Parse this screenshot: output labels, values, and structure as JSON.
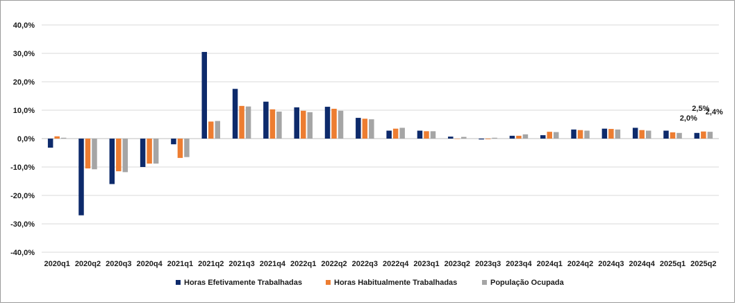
{
  "chart_data": {
    "type": "bar",
    "title": "",
    "xlabel": "",
    "ylabel": "",
    "ylim": [
      -40,
      40
    ],
    "grid": true,
    "legend_position": "bottom",
    "y_ticks": [
      "40,0%",
      "30,0%",
      "20,0%",
      "10,0%",
      "0,0%",
      "-10,0%",
      "-20,0%",
      "-30,0%",
      "-40,0%"
    ],
    "y_tick_values": [
      40,
      30,
      20,
      10,
      0,
      -10,
      -20,
      -30,
      -40
    ],
    "categories": [
      "2020q1",
      "2020q2",
      "2020q3",
      "2020q4",
      "2021q1",
      "2021q2",
      "2021q3",
      "2021q4",
      "2022q1",
      "2022q2",
      "2022q3",
      "2022q4",
      "2023q1",
      "2023q2",
      "2023q3",
      "2023q4",
      "2024q1",
      "2024q2",
      "2024q3",
      "2024q4",
      "2025q1",
      "2025q2"
    ],
    "series": [
      {
        "name": "Horas Efetivamente Trabalhadas",
        "color": "#0d2a6b",
        "values": [
          -3.2,
          -27.0,
          -16.0,
          -10.0,
          -2.0,
          30.5,
          17.5,
          13.0,
          11.0,
          11.2,
          7.3,
          2.8,
          2.8,
          0.7,
          -0.3,
          1.0,
          1.2,
          3.2,
          3.5,
          3.8,
          2.8,
          2.0
        ]
      },
      {
        "name": "Horas Habitualmente Trabalhadas",
        "color": "#ed7d31",
        "values": [
          0.8,
          -10.5,
          -11.5,
          -8.8,
          -6.8,
          6.0,
          11.5,
          10.3,
          9.8,
          10.5,
          7.0,
          3.5,
          2.6,
          -0.1,
          -0.2,
          1.0,
          2.4,
          3.0,
          3.4,
          3.0,
          2.2,
          2.5
        ]
      },
      {
        "name": "População Ocupada",
        "color": "#a5a5a5",
        "values": [
          0.3,
          -10.8,
          -11.8,
          -8.8,
          -6.5,
          6.2,
          11.3,
          9.5,
          9.3,
          9.8,
          6.8,
          3.8,
          2.6,
          0.6,
          0.3,
          1.5,
          2.3,
          2.8,
          3.2,
          2.8,
          2.0,
          2.4
        ]
      }
    ],
    "data_labels": [
      {
        "text": "2,0%",
        "series": 0,
        "category": 21
      },
      {
        "text": "2,5%",
        "series": 1,
        "category": 21
      },
      {
        "text": "2,4%",
        "series": 2,
        "category": 21
      }
    ]
  }
}
